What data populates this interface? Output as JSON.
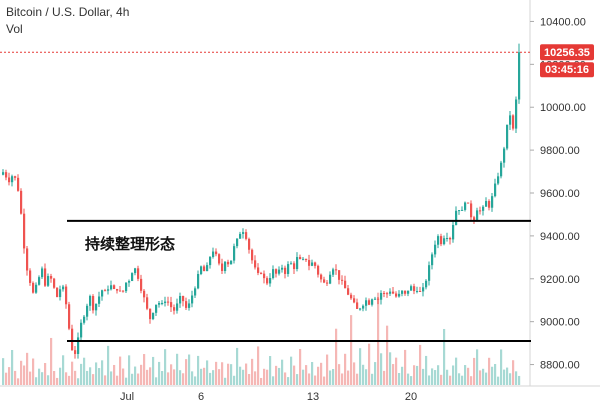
{
  "header": {
    "title": "Bitcoin / U.S. Dollar, 4h",
    "subtitle": "Vol"
  },
  "annotation": {
    "text": "持续整理形态"
  },
  "price_badge": {
    "price": "10256.35",
    "countdown": "03:45:16",
    "color": "#e53935"
  },
  "colors": {
    "up": "#26a69a",
    "down": "#ef5350",
    "up_vol": "#a7d9d4",
    "down_vol": "#f5b7b5",
    "level_line": "#000000",
    "price_line": "#e53935"
  },
  "chart_data": {
    "type": "candlestick",
    "title": "Bitcoin / U.S. Dollar, 4h",
    "ylim": [
      8700,
      10500
    ],
    "y_ticks": [
      "8800.00",
      "9000.00",
      "9200.00",
      "9400.00",
      "9600.00",
      "9800.00",
      "10000.00",
      "10200.00",
      "10400.00"
    ],
    "x_ticks": [
      "Jul",
      "6",
      "13",
      "20"
    ],
    "resistance_level": 9470,
    "support_level": 8910,
    "last_price": 10256.35,
    "series_path": [
      [
        0,
        9680
      ],
      [
        4,
        9700
      ],
      [
        9,
        9660
      ],
      [
        14,
        9690
      ],
      [
        19,
        9610
      ],
      [
        22,
        9480
      ],
      [
        26,
        9280
      ],
      [
        30,
        9200
      ],
      [
        34,
        9120
      ],
      [
        38,
        9180
      ],
      [
        42,
        9250
      ],
      [
        46,
        9170
      ],
      [
        50,
        9220
      ],
      [
        54,
        9160
      ],
      [
        58,
        9110
      ],
      [
        62,
        9180
      ],
      [
        66,
        9100
      ],
      [
        70,
        8950
      ],
      [
        74,
        8830
      ],
      [
        78,
        8900
      ],
      [
        82,
        9000
      ],
      [
        86,
        9060
      ],
      [
        90,
        9120
      ],
      [
        94,
        9060
      ],
      [
        98,
        9100
      ],
      [
        102,
        9150
      ],
      [
        106,
        9130
      ],
      [
        110,
        9180
      ],
      [
        114,
        9140
      ],
      [
        118,
        9160
      ],
      [
        122,
        9120
      ],
      [
        126,
        9180
      ],
      [
        130,
        9200
      ],
      [
        134,
        9260
      ],
      [
        138,
        9220
      ],
      [
        142,
        9150
      ],
      [
        146,
        9080
      ],
      [
        150,
        9010
      ],
      [
        154,
        9060
      ],
      [
        158,
        9100
      ],
      [
        162,
        9070
      ],
      [
        166,
        9110
      ],
      [
        170,
        9080
      ],
      [
        174,
        9050
      ],
      [
        178,
        9080
      ],
      [
        182,
        9120
      ],
      [
        186,
        9060
      ],
      [
        190,
        9080
      ],
      [
        194,
        9150
      ],
      [
        198,
        9200
      ],
      [
        202,
        9260
      ],
      [
        206,
        9220
      ],
      [
        210,
        9300
      ],
      [
        214,
        9340
      ],
      [
        218,
        9280
      ],
      [
        222,
        9230
      ],
      [
        226,
        9300
      ],
      [
        230,
        9260
      ],
      [
        234,
        9340
      ],
      [
        238,
        9380
      ],
      [
        242,
        9440
      ],
      [
        246,
        9410
      ],
      [
        250,
        9330
      ],
      [
        254,
        9260
      ],
      [
        258,
        9210
      ],
      [
        262,
        9240
      ],
      [
        266,
        9170
      ],
      [
        270,
        9210
      ],
      [
        274,
        9240
      ],
      [
        278,
        9210
      ],
      [
        282,
        9260
      ],
      [
        286,
        9230
      ],
      [
        290,
        9280
      ],
      [
        294,
        9250
      ],
      [
        298,
        9300
      ],
      [
        302,
        9270
      ],
      [
        306,
        9300
      ],
      [
        310,
        9260
      ],
      [
        314,
        9280
      ],
      [
        318,
        9230
      ],
      [
        322,
        9190
      ],
      [
        326,
        9170
      ],
      [
        330,
        9230
      ],
      [
        334,
        9260
      ],
      [
        338,
        9220
      ],
      [
        342,
        9180
      ],
      [
        346,
        9150
      ],
      [
        350,
        9120
      ],
      [
        354,
        9080
      ],
      [
        358,
        9050
      ],
      [
        362,
        9080
      ],
      [
        366,
        9100
      ],
      [
        370,
        9090
      ],
      [
        374,
        9130
      ],
      [
        378,
        9100
      ],
      [
        382,
        9140
      ],
      [
        386,
        9120
      ],
      [
        390,
        9150
      ],
      [
        394,
        9130
      ],
      [
        398,
        9110
      ],
      [
        402,
        9140
      ],
      [
        406,
        9120
      ],
      [
        410,
        9170
      ],
      [
        414,
        9140
      ],
      [
        418,
        9160
      ],
      [
        422,
        9120
      ],
      [
        426,
        9190
      ],
      [
        430,
        9260
      ],
      [
        434,
        9350
      ],
      [
        438,
        9400
      ],
      [
        442,
        9370
      ],
      [
        446,
        9420
      ],
      [
        450,
        9380
      ],
      [
        454,
        9470
      ],
      [
        458,
        9550
      ],
      [
        462,
        9500
      ],
      [
        466,
        9580
      ],
      [
        470,
        9510
      ],
      [
        474,
        9470
      ],
      [
        478,
        9540
      ],
      [
        482,
        9500
      ],
      [
        486,
        9560
      ],
      [
        490,
        9540
      ],
      [
        494,
        9600
      ],
      [
        498,
        9680
      ],
      [
        502,
        9740
      ],
      [
        506,
        9860
      ],
      [
        510,
        9980
      ],
      [
        514,
        9880
      ],
      [
        518,
        10120
      ],
      [
        521,
        10256.35
      ]
    ],
    "volume_pattern": [
      9,
      4,
      6,
      12,
      5,
      3,
      8,
      6,
      14,
      5,
      10,
      3,
      7,
      5,
      9,
      4,
      20,
      6,
      3,
      7,
      11,
      5,
      4,
      8,
      6,
      3,
      9,
      12,
      5,
      7,
      4,
      10,
      6,
      8,
      3,
      15,
      5,
      7,
      4,
      9,
      6,
      3,
      11,
      5,
      8,
      4,
      7,
      13,
      5,
      6,
      9,
      3,
      8,
      5,
      12,
      4,
      7,
      6,
      10,
      5,
      4,
      8,
      14,
      6,
      3,
      9,
      5,
      7,
      11,
      4,
      6,
      8,
      5,
      10,
      3,
      7,
      9,
      4,
      12,
      6,
      5,
      8,
      4,
      9,
      6,
      13,
      3,
      7,
      5,
      10,
      4,
      8,
      6,
      11,
      5,
      3,
      9,
      7,
      4,
      12,
      6,
      8,
      5,
      10,
      4,
      7,
      9,
      3,
      14,
      6,
      5,
      22,
      8,
      4,
      10,
      6,
      30,
      7,
      5,
      12,
      9,
      6,
      18,
      4,
      8,
      35,
      10,
      6,
      25,
      12,
      8
    ]
  }
}
